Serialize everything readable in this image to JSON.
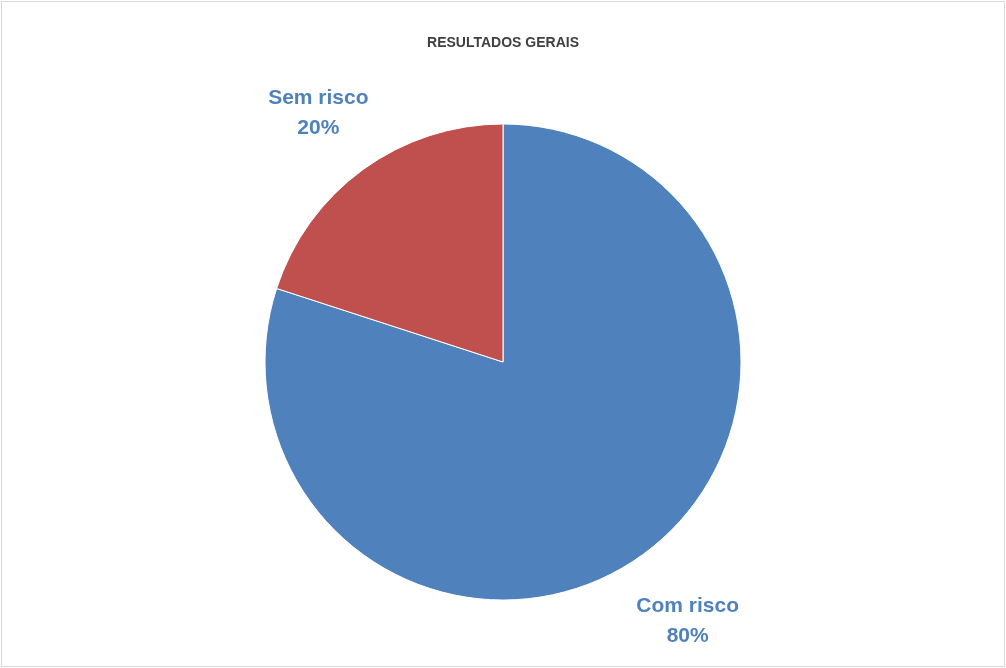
{
  "chart_data": {
    "type": "pie",
    "title": "RESULTADOS GERAIS",
    "categories": [
      "Com risco",
      "Sem risco"
    ],
    "values": [
      80,
      20
    ],
    "value_labels": [
      "80%",
      "20%"
    ],
    "colors": [
      "#4f81bd",
      "#c0504d"
    ]
  }
}
